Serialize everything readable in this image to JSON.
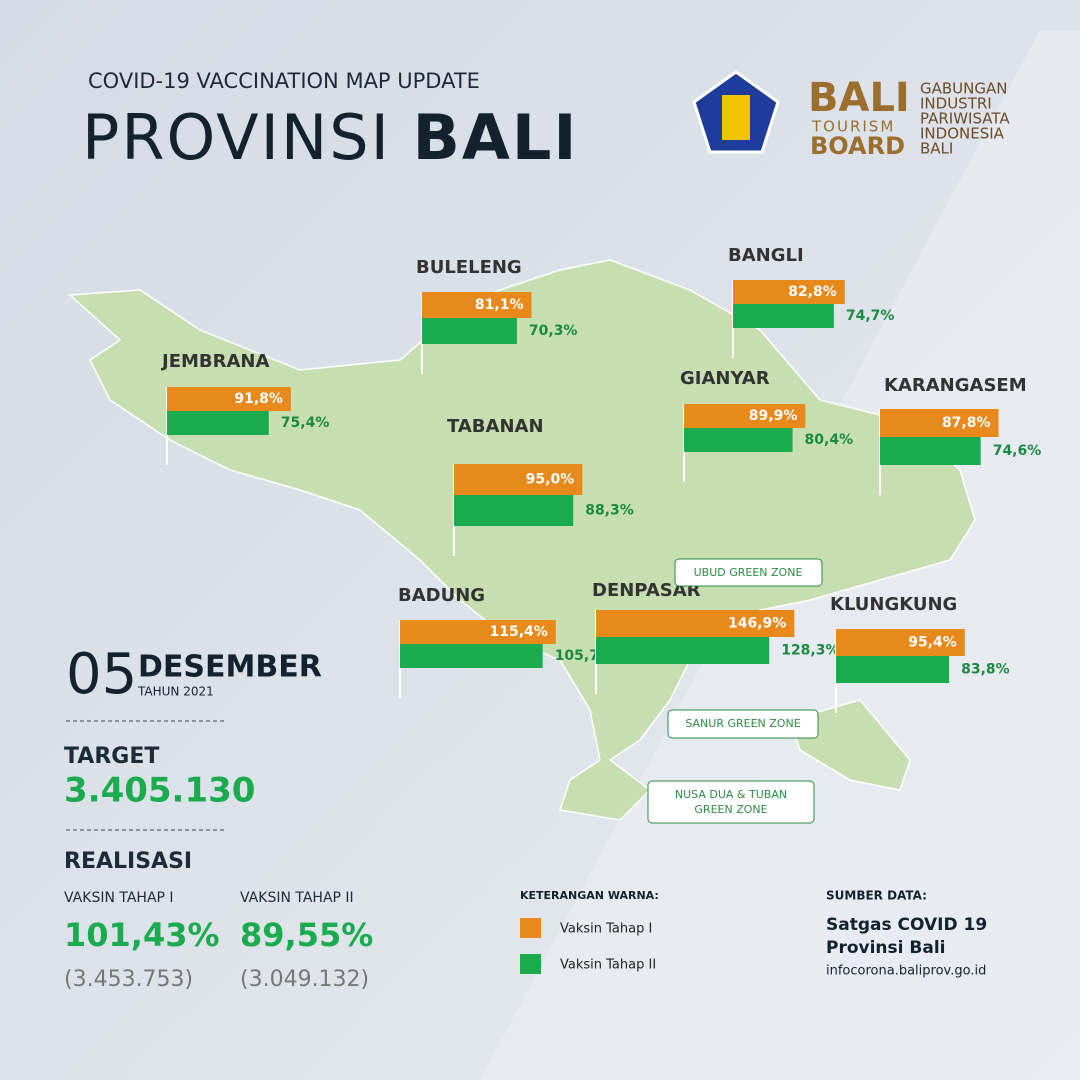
{
  "header": {
    "subtitle": "COVID-19 VACCINATION MAP UPDATE",
    "title_light": "PROVINSI",
    "title_bold": "BALI"
  },
  "logo": {
    "bali": "BALI",
    "tourism": "TOURISM",
    "board": "BOARD",
    "org": [
      "GABUNGAN",
      "INDUSTRI",
      "PARIWISATA",
      "INDONESIA",
      "BALI"
    ]
  },
  "chart_data": {
    "type": "bar",
    "categories": [
      "BULELENG",
      "BANGLI",
      "JEMBRANA",
      "GIANYAR",
      "KARANGASEM",
      "TABANAN",
      "BADUNG",
      "DENPASAR",
      "KLUNGKUNG"
    ],
    "series": [
      {
        "name": "Vaksin Tahap I",
        "color": "#e8891c",
        "values": [
          81.1,
          82.8,
          91.8,
          89.9,
          87.8,
          95.0,
          115.4,
          146.9,
          95.4
        ],
        "value_labels": [
          "81,1%",
          "82,8%",
          "91,8%",
          "89,9%",
          "87,8%",
          "95,0%",
          "115,4%",
          "146,9%",
          "95,4%"
        ]
      },
      {
        "name": "Vaksin Tahap II",
        "color": "#1aab4f",
        "values": [
          70.3,
          74.7,
          75.4,
          80.4,
          74.6,
          88.3,
          105.7,
          128.3,
          83.8
        ],
        "value_labels": [
          "70,3%",
          "74,7%",
          "75,4%",
          "80,4%",
          "74,6%",
          "88,3%",
          "105,7%",
          "128,3%",
          "83,8%"
        ]
      }
    ]
  },
  "zones": [
    "UBUD GREEN ZONE",
    "SANUR GREEN ZONE",
    "NUSA DUA & TUBAN",
    "GREEN ZONE"
  ],
  "date": {
    "day": "05",
    "month": "DESEMBER",
    "year": "TAHUN 2021"
  },
  "target": {
    "label": "TARGET",
    "value": "3.405.130"
  },
  "realisasi": {
    "label": "REALISASI",
    "items": [
      {
        "label": "VAKSIN TAHAP I",
        "pct": "101,43%",
        "count": "(3.453.753)"
      },
      {
        "label": "VAKSIN TAHAP II",
        "pct": "89,55%",
        "count": "(3.049.132)"
      }
    ]
  },
  "legend_title": "KETERANGAN WARNA:",
  "source": {
    "label": "SUMBER DATA:",
    "lines": [
      "Satgas COVID 19",
      "Provinsi Bali"
    ],
    "url": "infocorona.baliprov.go.id"
  }
}
